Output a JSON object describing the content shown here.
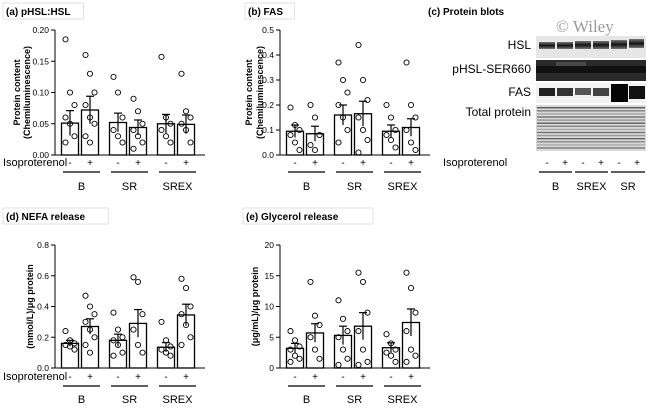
{
  "common": {
    "treatment_label": "Isoproterenol",
    "signs": [
      "-",
      "+"
    ]
  },
  "chart_data": [
    {
      "type": "bar",
      "title": "(a) pHSL:HSL",
      "ylabel_lines": [
        "Protein content",
        "(Chemiluminescence)"
      ],
      "ylim": [
        0,
        0.2
      ],
      "yticks": [
        "0.00",
        "0.05",
        "0.10",
        "0.15",
        "0.20"
      ],
      "groups": [
        "B",
        "SR",
        "SREX"
      ],
      "categories": [
        "B -",
        "B +",
        "SR -",
        "SR +",
        "SREX -",
        "SREX +"
      ],
      "values": [
        0.051,
        0.072,
        0.052,
        0.044,
        0.05,
        0.049
      ],
      "errors": [
        0.02,
        0.022,
        0.015,
        0.012,
        0.015,
        0.015
      ],
      "points": [
        [
          0.185,
          0.1,
          0.08,
          0.06,
          0.05,
          0.03,
          0.02
        ],
        [
          0.16,
          0.13,
          0.1,
          0.08,
          0.06,
          0.05,
          0.03,
          0.02
        ],
        [
          0.125,
          0.1,
          0.06,
          0.04,
          0.03,
          0.02
        ],
        [
          0.09,
          0.07,
          0.05,
          0.04,
          0.03,
          0.02,
          0.01
        ],
        [
          0.157,
          0.06,
          0.05,
          0.04,
          0.03,
          0.02
        ],
        [
          0.13,
          0.07,
          0.06,
          0.05,
          0.04,
          0.02
        ]
      ],
      "grid": false
    },
    {
      "type": "bar",
      "title": "(b) FAS",
      "ylabel_lines": [
        "Protein content",
        "(Chemiluminescence)"
      ],
      "ylim": [
        0,
        0.5
      ],
      "yticks": [
        "0.0",
        "0.1",
        "0.2",
        "0.3",
        "0.4",
        "0.5"
      ],
      "groups": [
        "B",
        "SR",
        "SREX"
      ],
      "categories": [
        "B -",
        "B +",
        "SR -",
        "SR +",
        "SREX -",
        "SREX +"
      ],
      "values": [
        0.095,
        0.085,
        0.16,
        0.165,
        0.095,
        0.11
      ],
      "errors": [
        0.025,
        0.03,
        0.04,
        0.05,
        0.025,
        0.035
      ],
      "points": [
        [
          0.19,
          0.12,
          0.1,
          0.08,
          0.05,
          0.02
        ],
        [
          0.2,
          0.15,
          0.08,
          0.04,
          0.02
        ],
        [
          0.37,
          0.3,
          0.25,
          0.2,
          0.15,
          0.1,
          0.05
        ],
        [
          0.44,
          0.3,
          0.22,
          0.15,
          0.1,
          0.06,
          0.01
        ],
        [
          0.2,
          0.15,
          0.1,
          0.08,
          0.06,
          0.03
        ],
        [
          0.37,
          0.2,
          0.15,
          0.1,
          0.05,
          0.02
        ]
      ],
      "grid": false
    },
    {
      "type": "bar",
      "title": "(d) NEFA release",
      "ylabel_lines": [
        "(mmol/L)/μg protein"
      ],
      "ylim": [
        0,
        0.8
      ],
      "yticks": [
        "0.0",
        "0.2",
        "0.4",
        "0.6",
        "0.8"
      ],
      "groups": [
        "B",
        "SR",
        "SREX"
      ],
      "categories": [
        "B -",
        "B +",
        "SR -",
        "SR +",
        "SREX -",
        "SREX +"
      ],
      "values": [
        0.16,
        0.27,
        0.18,
        0.29,
        0.135,
        0.345
      ],
      "errors": [
        0.02,
        0.05,
        0.04,
        0.09,
        0.03,
        0.07
      ],
      "points": [
        [
          0.24,
          0.18,
          0.16,
          0.15,
          0.14,
          0.12
        ],
        [
          0.47,
          0.4,
          0.35,
          0.3,
          0.25,
          0.2,
          0.15,
          0.1
        ],
        [
          0.36,
          0.25,
          0.2,
          0.18,
          0.15,
          0.1,
          0.08
        ],
        [
          0.59,
          0.56,
          0.35,
          0.25,
          0.15,
          0.1
        ],
        [
          0.3,
          0.18,
          0.14,
          0.12,
          0.1,
          0.08
        ],
        [
          0.58,
          0.52,
          0.4,
          0.35,
          0.28,
          0.2,
          0.15
        ]
      ],
      "grid": false
    },
    {
      "type": "bar",
      "title": "(e) Glycerol release",
      "ylabel_lines": [
        "(μg/mL)/μg protein"
      ],
      "ylim": [
        0,
        20
      ],
      "yticks": [
        "0",
        "5",
        "10",
        "15",
        "20"
      ],
      "groups": [
        "B",
        "SR",
        "SREX"
      ],
      "categories": [
        "B -",
        "B +",
        "SR -",
        "SR +",
        "SREX -",
        "SREX +"
      ],
      "values": [
        3.2,
        5.7,
        5.3,
        6.8,
        3.3,
        7.4
      ],
      "errors": [
        0.8,
        1.5,
        1.5,
        2.2,
        0.8,
        2.2
      ],
      "points": [
        [
          6.0,
          4.5,
          3.5,
          3.0,
          2.0,
          1.5,
          1.0
        ],
        [
          14.0,
          8.5,
          7.0,
          5.0,
          3.0,
          1.5
        ],
        [
          11.0,
          8.0,
          6.0,
          5.0,
          3.0,
          1.5,
          0.5
        ],
        [
          15.5,
          14.0,
          9.0,
          6.0,
          3.0,
          1.0,
          0.5
        ],
        [
          5.5,
          4.0,
          3.0,
          2.5,
          2.0,
          1.0
        ],
        [
          15.5,
          13.0,
          9.0,
          6.0,
          3.0,
          2.0,
          1.0
        ]
      ],
      "grid": false
    }
  ],
  "blots": {
    "title": "(c) Protein blots",
    "watermark": "© Wiley",
    "rows": [
      "HSL",
      "pHSL-SER660",
      "FAS",
      "Total protein"
    ],
    "groups": [
      "B",
      "SREX",
      "SR"
    ]
  }
}
